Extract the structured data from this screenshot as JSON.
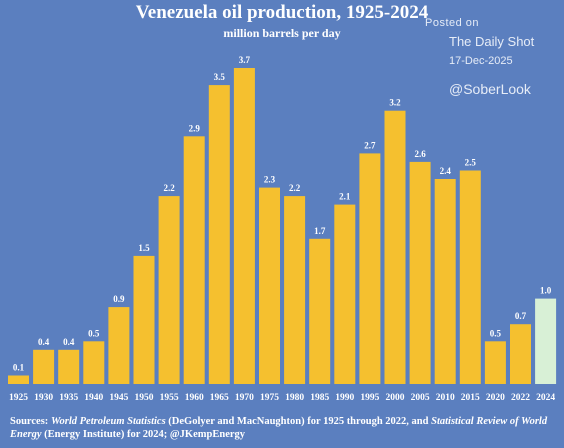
{
  "header": {
    "title": "Venezuela oil production, 1925-2024",
    "subtitle": "million barrels per day"
  },
  "watermark": {
    "posted": "Posted on",
    "name": "The Daily Shot",
    "date": "17-Dec-2025",
    "handle": "@SoberLook"
  },
  "sources": {
    "prefix": "Sources: ",
    "title1": "World Petroleum Statistics",
    "mid": " (DeGolyer and MacNaughton) for 1925 through 2022, and ",
    "title2": "Statistical Review of World Energy",
    "suffix": " (Energy Institute) for 2024; @JKempEnergy"
  },
  "colors": {
    "background": "#5b7fbf",
    "bar": "#f5c02f",
    "bar_highlight": "#d8f0d6",
    "text": "#ffffff"
  },
  "chart_data": {
    "type": "bar",
    "title": "Venezuela oil production, 1925-2024",
    "subtitle": "million barrels per day",
    "categories": [
      "1925",
      "1930",
      "1935",
      "1940",
      "1945",
      "1950",
      "1955",
      "1960",
      "1965",
      "1970",
      "1975",
      "1980",
      "1985",
      "1990",
      "1995",
      "2000",
      "2005",
      "2010",
      "2015",
      "2020",
      "2022",
      "2024"
    ],
    "values": [
      0.1,
      0.4,
      0.4,
      0.5,
      0.9,
      1.5,
      2.2,
      2.9,
      3.5,
      3.7,
      2.3,
      2.2,
      1.7,
      2.1,
      2.7,
      3.2,
      2.6,
      2.4,
      2.5,
      0.5,
      0.7,
      1.0
    ],
    "labels": [
      "0.1",
      "0.4",
      "0.4",
      "0.5",
      "0.9",
      "1.5",
      "2.2",
      "2.9",
      "3.5",
      "3.7",
      "2.3",
      "2.2",
      "1.7",
      "2.1",
      "2.7",
      "3.2",
      "2.6",
      "2.4",
      "2.5",
      "0.5",
      "0.7",
      "1.0"
    ],
    "highlight_category": "2024",
    "ylim": [
      0,
      3.7
    ],
    "grid": false,
    "legend": "none"
  }
}
